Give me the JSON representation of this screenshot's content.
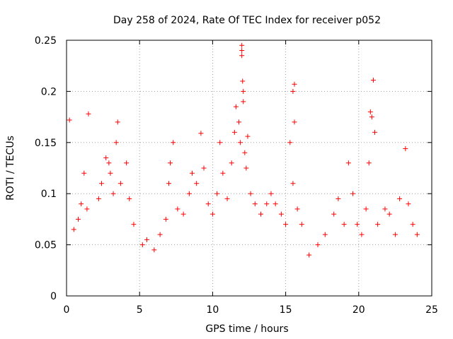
{
  "chart_data": {
    "type": "scatter",
    "title": "Day 258 of 2024, Rate Of TEC Index for receiver p052",
    "xlabel": "GPS time / hours",
    "ylabel": "ROTI / TECUs",
    "xlim": [
      0,
      25
    ],
    "ylim": [
      0,
      0.25
    ],
    "xticks": [
      0,
      5,
      10,
      15,
      20,
      25
    ],
    "xtick_labels": [
      "0",
      "5",
      "10",
      "15",
      "20",
      "25"
    ],
    "yticks": [
      0,
      0.05,
      0.1,
      0.15,
      0.2,
      0.25
    ],
    "ytick_labels": [
      "0",
      "0.05",
      "0.1",
      "0.15",
      "0.2",
      "0.25"
    ],
    "grid": true,
    "marker": "+",
    "color": "#ff0000",
    "series": [
      {
        "values": [
          [
            0.2,
            0.172
          ],
          [
            1.5,
            0.178
          ],
          [
            3.5,
            0.17
          ],
          [
            3.4,
            0.15
          ],
          [
            2.7,
            0.135
          ],
          [
            2.9,
            0.13
          ],
          [
            4.1,
            0.13
          ],
          [
            1.2,
            0.12
          ],
          [
            0.5,
            0.065
          ],
          [
            0.8,
            0.075
          ],
          [
            1.0,
            0.09
          ],
          [
            1.4,
            0.085
          ],
          [
            2.2,
            0.095
          ],
          [
            2.4,
            0.11
          ],
          [
            3.0,
            0.12
          ],
          [
            3.2,
            0.1
          ],
          [
            3.7,
            0.11
          ],
          [
            4.3,
            0.095
          ],
          [
            4.6,
            0.07
          ],
          [
            5.2,
            0.05
          ],
          [
            5.5,
            0.055
          ],
          [
            6.0,
            0.045
          ],
          [
            6.4,
            0.06
          ],
          [
            6.8,
            0.075
          ],
          [
            7.1,
            0.13
          ],
          [
            7.3,
            0.15
          ],
          [
            7.0,
            0.11
          ],
          [
            7.6,
            0.085
          ],
          [
            8.0,
            0.08
          ],
          [
            8.4,
            0.1
          ],
          [
            8.6,
            0.12
          ],
          [
            8.9,
            0.11
          ],
          [
            9.2,
            0.159
          ],
          [
            9.4,
            0.125
          ],
          [
            9.7,
            0.09
          ],
          [
            10.0,
            0.08
          ],
          [
            10.3,
            0.1
          ],
          [
            10.5,
            0.15
          ],
          [
            10.7,
            0.12
          ],
          [
            11.0,
            0.095
          ],
          [
            11.3,
            0.13
          ],
          [
            11.5,
            0.16
          ],
          [
            11.6,
            0.185
          ],
          [
            11.8,
            0.17
          ],
          [
            12.0,
            0.245
          ],
          [
            12.0,
            0.24
          ],
          [
            12.0,
            0.235
          ],
          [
            12.05,
            0.21
          ],
          [
            12.1,
            0.2
          ],
          [
            12.1,
            0.19
          ],
          [
            11.9,
            0.15
          ],
          [
            12.2,
            0.14
          ],
          [
            12.3,
            0.125
          ],
          [
            12.4,
            0.156
          ],
          [
            12.6,
            0.1
          ],
          [
            12.9,
            0.09
          ],
          [
            13.3,
            0.08
          ],
          [
            13.7,
            0.09
          ],
          [
            14.0,
            0.1
          ],
          [
            14.3,
            0.09
          ],
          [
            14.7,
            0.08
          ],
          [
            15.0,
            0.07
          ],
          [
            15.3,
            0.15
          ],
          [
            15.5,
            0.2
          ],
          [
            15.6,
            0.207
          ],
          [
            15.6,
            0.17
          ],
          [
            15.5,
            0.11
          ],
          [
            15.8,
            0.085
          ],
          [
            16.1,
            0.07
          ],
          [
            16.6,
            0.04
          ],
          [
            17.2,
            0.05
          ],
          [
            17.7,
            0.06
          ],
          [
            18.3,
            0.08
          ],
          [
            18.6,
            0.095
          ],
          [
            19.0,
            0.07
          ],
          [
            19.3,
            0.13
          ],
          [
            19.6,
            0.1
          ],
          [
            19.9,
            0.07
          ],
          [
            20.2,
            0.06
          ],
          [
            20.5,
            0.085
          ],
          [
            20.7,
            0.13
          ],
          [
            20.8,
            0.18
          ],
          [
            20.9,
            0.175
          ],
          [
            21.0,
            0.211
          ],
          [
            21.1,
            0.16
          ],
          [
            21.3,
            0.07
          ],
          [
            21.8,
            0.085
          ],
          [
            22.1,
            0.08
          ],
          [
            22.5,
            0.06
          ],
          [
            22.8,
            0.095
          ],
          [
            23.2,
            0.144
          ],
          [
            23.4,
            0.09
          ],
          [
            23.7,
            0.07
          ],
          [
            24.0,
            0.06
          ]
        ]
      }
    ]
  }
}
